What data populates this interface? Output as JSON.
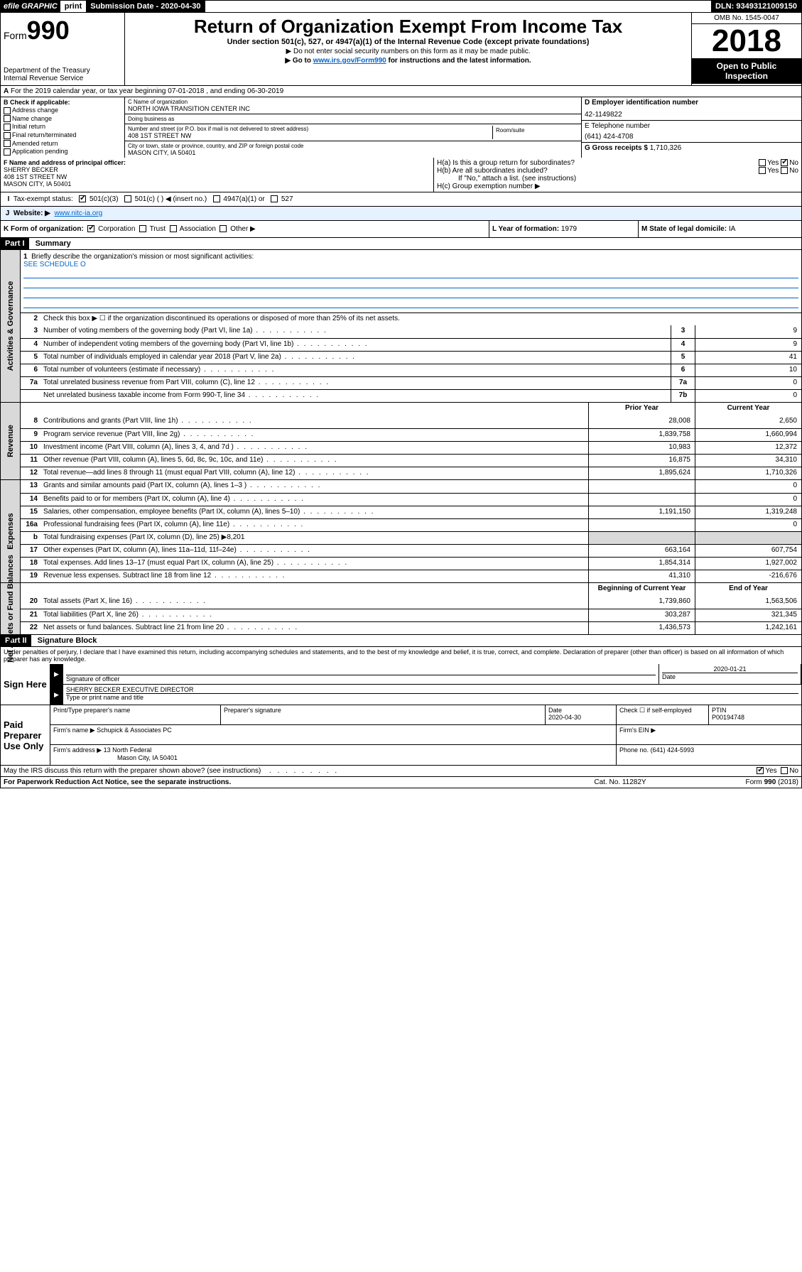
{
  "topbar": {
    "efile": "efile GRAPHIC",
    "print": "print",
    "subdate_label": "Submission Date - 2020-04-30",
    "dln": "DLN: 93493121009150"
  },
  "header": {
    "form_label": "Form",
    "form_num": "990",
    "dept": "Department of the Treasury",
    "irs": "Internal Revenue Service",
    "title": "Return of Organization Exempt From Income Tax",
    "subtitle": "Under section 501(c), 527, or 4947(a)(1) of the Internal Revenue Code (except private foundations)",
    "note1": "▶ Do not enter social security numbers on this form as it may be made public.",
    "note2_pre": "▶ Go to ",
    "note2_link": "www.irs.gov/Form990",
    "note2_post": " for instructions and the latest information.",
    "omb": "OMB No. 1545-0047",
    "year": "2018",
    "open": "Open to Public Inspection"
  },
  "lineA": "For the 2019 calendar year, or tax year beginning 07-01-2018    , and ending 06-30-2019",
  "sectionB": {
    "label": "B Check if applicable:",
    "items": [
      "Address change",
      "Name change",
      "Initial return",
      "Final return/terminated",
      "Amended return",
      "Application pending"
    ]
  },
  "sectionC": {
    "name_label": "C Name of organization",
    "name": "NORTH IOWA TRANSITION CENTER INC",
    "dba_label": "Doing business as",
    "dba": "",
    "addr_label": "Number and street (or P.O. box if mail is not delivered to street address)",
    "room_label": "Room/suite",
    "addr": "408 1ST STREET NW",
    "city_label": "City or town, state or province, country, and ZIP or foreign postal code",
    "city": "MASON CITY, IA  50401"
  },
  "sectionD": {
    "label": "D Employer identification number",
    "val": "42-1149822"
  },
  "sectionE": {
    "label": "E Telephone number",
    "val": "(641) 424-4708"
  },
  "sectionG": {
    "label": "G Gross receipts $",
    "val": "1,710,326"
  },
  "sectionF": {
    "label": "F  Name and address of principal officer:",
    "name": "SHERRY BECKER",
    "addr1": "408 1ST STREET NW",
    "addr2": "MASON CITY, IA  50401"
  },
  "sectionH": {
    "a": "H(a)  Is this a group return for subordinates?",
    "a_yes": "Yes",
    "a_no": "No",
    "b": "H(b)  Are all subordinates included?",
    "b_yes": "Yes",
    "b_no": "No",
    "b_note": "If \"No,\" attach a list. (see instructions)",
    "c": "H(c)  Group exemption number ▶"
  },
  "lineI": {
    "label": "Tax-exempt status:",
    "opts": [
      "501(c)(3)",
      "501(c) (  ) ◀ (insert no.)",
      "4947(a)(1) or",
      "527"
    ]
  },
  "lineJ": {
    "label": "Website: ▶",
    "val": "www.nitc-ia.org"
  },
  "lineK": {
    "left": "K Form of organization:",
    "opts": [
      "Corporation",
      "Trust",
      "Association",
      "Other ▶"
    ],
    "mid_label": "L Year of formation:",
    "mid_val": "1979",
    "right_label": "M State of legal domicile:",
    "right_val": "IA"
  },
  "part1": {
    "header": "Part I",
    "title": "Summary",
    "line1": "Briefly describe the organization's mission or most significant activities:",
    "line1_val": "SEE SCHEDULE O",
    "line2": "Check this box ▶ ☐  if the organization discontinued its operations or disposed of more than 25% of its net assets.",
    "rows_single": [
      {
        "n": "3",
        "t": "Number of voting members of the governing body (Part VI, line 1a)",
        "box": "3",
        "v": "9"
      },
      {
        "n": "4",
        "t": "Number of independent voting members of the governing body (Part VI, line 1b)",
        "box": "4",
        "v": "9"
      },
      {
        "n": "5",
        "t": "Total number of individuals employed in calendar year 2018 (Part V, line 2a)",
        "box": "5",
        "v": "41"
      },
      {
        "n": "6",
        "t": "Total number of volunteers (estimate if necessary)",
        "box": "6",
        "v": "10"
      },
      {
        "n": "7a",
        "t": "Total unrelated business revenue from Part VIII, column (C), line 12",
        "box": "7a",
        "v": "0"
      },
      {
        "n": "",
        "t": "Net unrelated business taxable income from Form 990-T, line 34",
        "box": "7b",
        "v": "0"
      }
    ],
    "twocol_hdr": {
      "l": "Prior Year",
      "r": "Current Year"
    },
    "revenue": [
      {
        "n": "8",
        "t": "Contributions and grants (Part VIII, line 1h)",
        "p": "28,008",
        "c": "2,650"
      },
      {
        "n": "9",
        "t": "Program service revenue (Part VIII, line 2g)",
        "p": "1,839,758",
        "c": "1,660,994"
      },
      {
        "n": "10",
        "t": "Investment income (Part VIII, column (A), lines 3, 4, and 7d )",
        "p": "10,983",
        "c": "12,372"
      },
      {
        "n": "11",
        "t": "Other revenue (Part VIII, column (A), lines 5, 6d, 8c, 9c, 10c, and 11e)",
        "p": "16,875",
        "c": "34,310"
      },
      {
        "n": "12",
        "t": "Total revenue—add lines 8 through 11 (must equal Part VIII, column (A), line 12)",
        "p": "1,895,624",
        "c": "1,710,326"
      }
    ],
    "expenses": [
      {
        "n": "13",
        "t": "Grants and similar amounts paid (Part IX, column (A), lines 1–3 )",
        "p": "",
        "c": "0"
      },
      {
        "n": "14",
        "t": "Benefits paid to or for members (Part IX, column (A), line 4)",
        "p": "",
        "c": "0"
      },
      {
        "n": "15",
        "t": "Salaries, other compensation, employee benefits (Part IX, column (A), lines 5–10)",
        "p": "1,191,150",
        "c": "1,319,248"
      },
      {
        "n": "16a",
        "t": "Professional fundraising fees (Part IX, column (A), line 11e)",
        "p": "",
        "c": "0"
      },
      {
        "n": "b",
        "t": "Total fundraising expenses (Part IX, column (D), line 25) ▶8,201",
        "p": "##",
        "c": "##"
      },
      {
        "n": "17",
        "t": "Other expenses (Part IX, column (A), lines 11a–11d, 11f–24e)",
        "p": "663,164",
        "c": "607,754"
      },
      {
        "n": "18",
        "t": "Total expenses. Add lines 13–17 (must equal Part IX, column (A), line 25)",
        "p": "1,854,314",
        "c": "1,927,002"
      },
      {
        "n": "19",
        "t": "Revenue less expenses. Subtract line 18 from line 12",
        "p": "41,310",
        "c": "-216,676"
      }
    ],
    "netassets_hdr": {
      "l": "Beginning of Current Year",
      "r": "End of Year"
    },
    "netassets": [
      {
        "n": "20",
        "t": "Total assets (Part X, line 16)",
        "p": "1,739,860",
        "c": "1,563,506"
      },
      {
        "n": "21",
        "t": "Total liabilities (Part X, line 26)",
        "p": "303,287",
        "c": "321,345"
      },
      {
        "n": "22",
        "t": "Net assets or fund balances. Subtract line 21 from line 20",
        "p": "1,436,573",
        "c": "1,242,161"
      }
    ],
    "side_gov": "Activities & Governance",
    "side_rev": "Revenue",
    "side_exp": "Expenses",
    "side_net": "Net Assets or Fund Balances"
  },
  "part2": {
    "header": "Part II",
    "title": "Signature Block",
    "penalties": "Under penalties of perjury, I declare that I have examined this return, including accompanying schedules and statements, and to the best of my knowledge and belief, it is true, correct, and complete. Declaration of preparer (other than officer) is based on all information of which preparer has any knowledge."
  },
  "sign": {
    "label": "Sign Here",
    "sig_label": "Signature of officer",
    "date": "2020-01-21",
    "date_label": "Date",
    "name": "SHERRY BECKER  EXECUTIVE DIRECTOR",
    "name_label": "Type or print name and title"
  },
  "paid": {
    "label": "Paid Preparer Use Only",
    "prep_name_label": "Print/Type preparer's name",
    "prep_sig_label": "Preparer's signature",
    "prep_date_label": "Date",
    "prep_date": "2020-04-30",
    "check_label": "Check ☐ if self-employed",
    "ptin_label": "PTIN",
    "ptin": "P00194748",
    "firm_name_label": "Firm's name    ▶",
    "firm_name": "Schupick & Associates PC",
    "firm_ein_label": "Firm's EIN ▶",
    "firm_addr_label": "Firm's address ▶",
    "firm_addr": "13 North Federal",
    "firm_city": "Mason City, IA  50401",
    "phone_label": "Phone no.",
    "phone": "(641) 424-5993"
  },
  "discuss": {
    "q": "May the IRS discuss this return with the preparer shown above? (see instructions)",
    "yes": "Yes",
    "no": "No"
  },
  "footer": {
    "l": "For Paperwork Reduction Act Notice, see the separate instructions.",
    "m": "Cat. No. 11282Y",
    "r": "Form 990 (2018)"
  },
  "colors": {
    "link": "#0066cc",
    "shade": "#d9d9d9",
    "blueband": "#e6f2ff"
  }
}
